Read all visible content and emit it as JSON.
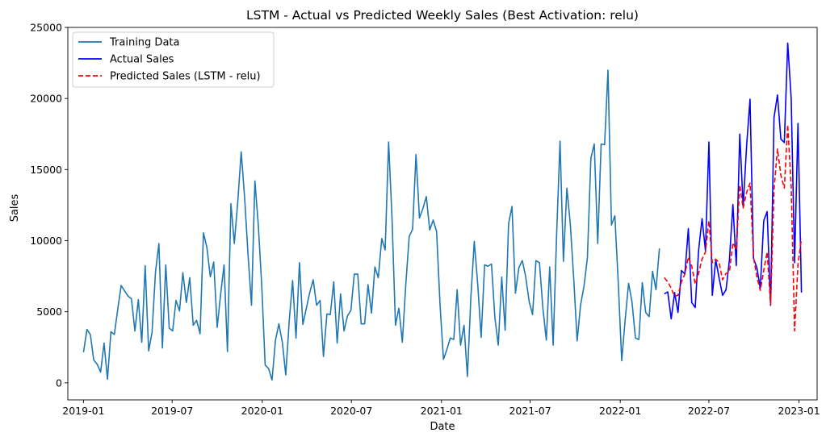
{
  "chart_data": {
    "type": "line",
    "title": "LSTM - Actual vs Predicted Weekly Sales (Best Activation: relu)",
    "xlabel": "Date",
    "ylabel": "Sales",
    "xlim": [
      "2018-11-30",
      "2023-02-07"
    ],
    "ylim": [
      -1200,
      25000
    ],
    "x_ticks": [
      "2019-01",
      "2019-07",
      "2020-01",
      "2020-07",
      "2021-01",
      "2021-07",
      "2022-01",
      "2022-07",
      "2023-01"
    ],
    "y_ticks": [
      0,
      5000,
      10000,
      15000,
      20000,
      25000
    ],
    "grid": false,
    "legend_position": "upper-left",
    "colors": {
      "training": "#1f77b4",
      "actual": "#0000ff",
      "predicted": "#ff0000"
    },
    "series": [
      {
        "name": "Training Data",
        "style": "solid",
        "color": "#1f77b4",
        "start_date": "2019-01-01",
        "interval_days": 7,
        "values": [
          2150,
          3750,
          3400,
          1600,
          1300,
          750,
          2800,
          250,
          3600,
          3400,
          5200,
          6850,
          6450,
          6100,
          5900,
          3650,
          5850,
          2850,
          8250,
          2250,
          3550,
          7800,
          9800,
          2450,
          8300,
          3850,
          3650,
          5800,
          5050,
          7750,
          5650,
          7400,
          4050,
          4400,
          3450,
          10550,
          9500,
          7450,
          8500,
          3900,
          6200,
          8300,
          2200,
          12600,
          9800,
          12750,
          16250,
          13000,
          9000,
          5450,
          14200,
          11100,
          6800,
          1250,
          1000,
          200,
          3000,
          4150,
          2850,
          550,
          4350,
          7200,
          3150,
          8450,
          4100,
          5250,
          6350,
          7250,
          5450,
          5800,
          1850,
          4850,
          4800,
          7100,
          2800,
          6250,
          3650,
          4700,
          5100,
          7650,
          7650,
          4150,
          4150,
          6900,
          4900,
          8150,
          7400,
          10150,
          9350,
          16950,
          11600,
          4050,
          5250,
          2850,
          6850,
          10300,
          10800,
          16050,
          11600,
          12250,
          13100,
          10750,
          11450,
          10650,
          5500,
          1650,
          2350,
          3150,
          3050,
          6550,
          2650,
          4050,
          450,
          6050,
          9950,
          6900,
          3200,
          8300,
          8200,
          8350,
          4600,
          2650,
          7450,
          3700,
          11200,
          12400,
          6300,
          8100,
          8600,
          7450,
          5700,
          4800,
          8600,
          8450,
          5300,
          3000,
          8150,
          2650,
          10300,
          17000,
          8550,
          13700,
          11200,
          7300,
          2950,
          5450,
          6800,
          8800,
          15800,
          16800,
          9800,
          16800,
          16750,
          22000,
          11100,
          11750,
          7050,
          1550,
          4400,
          7000,
          5700,
          3150,
          3050,
          7050,
          4950,
          4650,
          7850,
          6550,
          9450
        ]
      },
      {
        "name": "Actual Sales",
        "style": "solid",
        "color": "#0000ff",
        "start_date": "2022-04-01",
        "interval_days": 7,
        "values": [
          6250,
          6400,
          4500,
          6350,
          4950,
          7900,
          7650,
          10850,
          5650,
          5300,
          9300,
          11550,
          9300,
          16950,
          6150,
          8650,
          7350,
          6150,
          6550,
          8650,
          12550,
          8250,
          17500,
          12400,
          16700,
          19950,
          8750,
          8100,
          6650,
          11400,
          12050,
          5450,
          18650,
          20250,
          17150,
          16900,
          23900,
          20000,
          8450,
          18250,
          6350
        ]
      },
      {
        "name": "Predicted Sales (LSTM - relu)",
        "style": "dashed",
        "color": "#ff0000",
        "start_date": "2022-04-01",
        "interval_days": 7,
        "values": [
          7400,
          7100,
          6650,
          6100,
          6150,
          7100,
          7650,
          8850,
          8200,
          6950,
          7700,
          8700,
          9200,
          11400,
          8450,
          8700,
          8450,
          7250,
          7700,
          7800,
          9850,
          9350,
          13900,
          12300,
          13400,
          14050,
          8850,
          7450,
          6500,
          7900,
          9200,
          5500,
          13600,
          16450,
          14600,
          13700,
          18150,
          13800,
          3650,
          8350,
          10150
        ]
      }
    ]
  }
}
